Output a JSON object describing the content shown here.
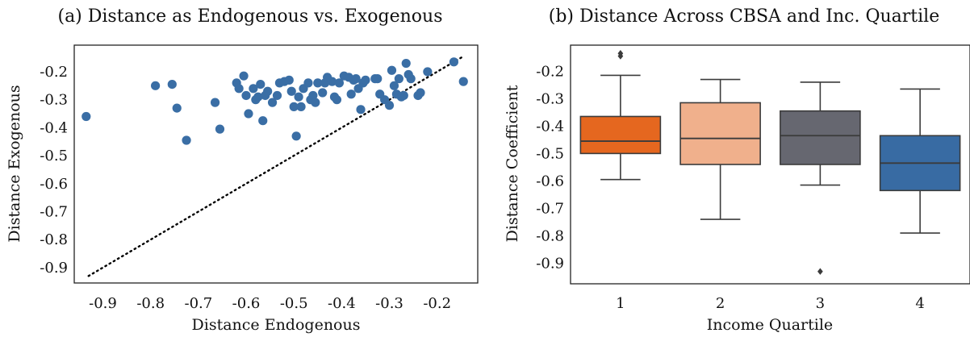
{
  "chart_data": [
    {
      "type": "scatter",
      "title": "(a) Distance as Endogenous vs. Exogenous",
      "xlabel": "Distance Endogenous",
      "ylabel": "Distance Exogenous",
      "xlim": [
        -0.96,
        -0.115
      ],
      "ylim": [
        -0.955,
        -0.105
      ],
      "xticks": [
        -0.9,
        -0.8,
        -0.7,
        -0.6,
        -0.5,
        -0.4,
        -0.3,
        -0.2
      ],
      "yticks": [
        -0.9,
        -0.8,
        -0.7,
        -0.6,
        -0.5,
        -0.4,
        -0.3,
        -0.2
      ],
      "xtick_labels": [
        "-0.9",
        "-0.8",
        "-0.7",
        "-0.6",
        "-0.5",
        "-0.4",
        "-0.3",
        "-0.2"
      ],
      "ytick_labels": [
        "-0.9",
        "-0.8",
        "-0.7",
        "-0.6",
        "-0.5",
        "-0.4",
        "-0.3",
        "-0.2"
      ],
      "grid": false,
      "point_color": "#3a6ea5",
      "reference_line": {
        "style": "dotted",
        "color": "#000000",
        "from": [
          -0.93,
          -0.93
        ],
        "to": [
          -0.145,
          -0.145
        ]
      },
      "points": [
        [
          -0.935,
          -0.36
        ],
        [
          -0.79,
          -0.25
        ],
        [
          -0.755,
          -0.245
        ],
        [
          -0.745,
          -0.33
        ],
        [
          -0.725,
          -0.445
        ],
        [
          -0.665,
          -0.31
        ],
        [
          -0.655,
          -0.405
        ],
        [
          -0.62,
          -0.24
        ],
        [
          -0.615,
          -0.26
        ],
        [
          -0.605,
          -0.215
        ],
        [
          -0.6,
          -0.285
        ],
        [
          -0.595,
          -0.35
        ],
        [
          -0.585,
          -0.26
        ],
        [
          -0.58,
          -0.3
        ],
        [
          -0.575,
          -0.29
        ],
        [
          -0.57,
          -0.245
        ],
        [
          -0.565,
          -0.375
        ],
        [
          -0.56,
          -0.285
        ],
        [
          -0.555,
          -0.27
        ],
        [
          -0.545,
          -0.31
        ],
        [
          -0.535,
          -0.285
        ],
        [
          -0.53,
          -0.24
        ],
        [
          -0.52,
          -0.235
        ],
        [
          -0.51,
          -0.23
        ],
        [
          -0.505,
          -0.27
        ],
        [
          -0.5,
          -0.325
        ],
        [
          -0.495,
          -0.43
        ],
        [
          -0.49,
          -0.29
        ],
        [
          -0.485,
          -0.325
        ],
        [
          -0.48,
          -0.26
        ],
        [
          -0.47,
          -0.24
        ],
        [
          -0.465,
          -0.3
        ],
        [
          -0.46,
          -0.285
        ],
        [
          -0.455,
          -0.31
        ],
        [
          -0.45,
          -0.24
        ],
        [
          -0.44,
          -0.275
        ],
        [
          -0.435,
          -0.24
        ],
        [
          -0.43,
          -0.22
        ],
        [
          -0.42,
          -0.235
        ],
        [
          -0.415,
          -0.29
        ],
        [
          -0.41,
          -0.3
        ],
        [
          -0.405,
          -0.24
        ],
        [
          -0.395,
          -0.215
        ],
        [
          -0.385,
          -0.22
        ],
        [
          -0.38,
          -0.28
        ],
        [
          -0.375,
          -0.23
        ],
        [
          -0.37,
          -0.225
        ],
        [
          -0.365,
          -0.26
        ],
        [
          -0.36,
          -0.335
        ],
        [
          -0.355,
          -0.24
        ],
        [
          -0.35,
          -0.23
        ],
        [
          -0.33,
          -0.225
        ],
        [
          -0.325,
          -0.225
        ],
        [
          -0.32,
          -0.28
        ],
        [
          -0.31,
          -0.3
        ],
        [
          -0.3,
          -0.32
        ],
        [
          -0.295,
          -0.195
        ],
        [
          -0.29,
          -0.25
        ],
        [
          -0.285,
          -0.28
        ],
        [
          -0.28,
          -0.225
        ],
        [
          -0.275,
          -0.29
        ],
        [
          -0.27,
          -0.285
        ],
        [
          -0.265,
          -0.17
        ],
        [
          -0.26,
          -0.21
        ],
        [
          -0.255,
          -0.225
        ],
        [
          -0.24,
          -0.285
        ],
        [
          -0.235,
          -0.275
        ],
        [
          -0.22,
          -0.2
        ],
        [
          -0.165,
          -0.165
        ],
        [
          -0.145,
          -0.235
        ]
      ]
    },
    {
      "type": "box",
      "title": "(b) Distance Across CBSA and Inc. Quartile",
      "xlabel": "Income Quartile",
      "ylabel": "Distance Coefficient",
      "ylim": [
        -0.975,
        -0.105
      ],
      "yticks": [
        -0.9,
        -0.8,
        -0.7,
        -0.6,
        -0.5,
        -0.4,
        -0.3,
        -0.2
      ],
      "ytick_labels": [
        "-0.9",
        "-0.8",
        "-0.7",
        "-0.6",
        "-0.5",
        "-0.4",
        "-0.3",
        "-0.2"
      ],
      "categories": [
        "1",
        "2",
        "3",
        "4"
      ],
      "grid": false,
      "boxes": [
        {
          "q1": -0.5,
          "median": -0.455,
          "q3": -0.365,
          "whisker_low": -0.595,
          "whisker_high": -0.215,
          "outliers": [
            -0.135,
            -0.145
          ],
          "color": "#e5671f"
        },
        {
          "q1": -0.54,
          "median": -0.445,
          "q3": -0.315,
          "whisker_low": -0.74,
          "whisker_high": -0.23,
          "outliers": [],
          "color": "#f0b08c"
        },
        {
          "q1": -0.54,
          "median": -0.435,
          "q3": -0.345,
          "whisker_low": -0.615,
          "whisker_high": -0.24,
          "outliers": [
            -0.93
          ],
          "color": "#666770"
        },
        {
          "q1": -0.635,
          "median": -0.535,
          "q3": -0.435,
          "whisker_low": -0.79,
          "whisker_high": -0.265,
          "outliers": [],
          "color": "#386ba3"
        }
      ]
    }
  ]
}
